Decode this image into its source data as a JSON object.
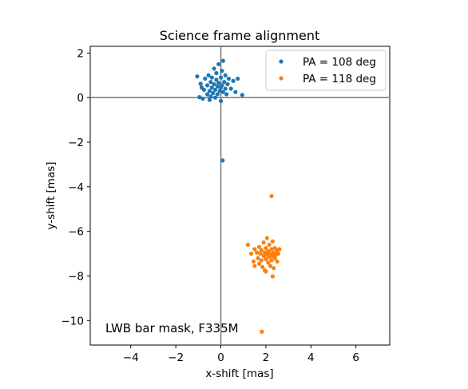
{
  "chart_data": {
    "type": "scatter",
    "title": "Science frame alignment",
    "xlabel": "x-shift [mas]",
    "ylabel": "y-shift [mas]",
    "xlim": [
      -5.8,
      7.5
    ],
    "ylim": [
      -11.1,
      2.3
    ],
    "xticks": [
      -4,
      -2,
      0,
      2,
      4,
      6
    ],
    "yticks": [
      2,
      0,
      -2,
      -4,
      -6,
      -8,
      -10
    ],
    "reference_lines": {
      "x": 0,
      "y": 0,
      "color": "#808080"
    },
    "grid": false,
    "legend_position": "top-right",
    "annotation": "LWB bar mask, F335M",
    "series": [
      {
        "name": "PA = 108 deg",
        "color": "#1f77b4",
        "points": [
          [
            -1.05,
            0.95
          ],
          [
            -0.9,
            0.62
          ],
          [
            -0.95,
            0.02
          ],
          [
            -0.8,
            -0.05
          ],
          [
            -0.85,
            0.45
          ],
          [
            -0.7,
            0.85
          ],
          [
            -0.75,
            0.35
          ],
          [
            -0.6,
            0.15
          ],
          [
            -0.6,
            0.55
          ],
          [
            -0.55,
            1.0
          ],
          [
            -0.5,
            0.3
          ],
          [
            -0.5,
            -0.1
          ],
          [
            -0.45,
            0.7
          ],
          [
            -0.4,
            0.45
          ],
          [
            -0.4,
            0.9
          ],
          [
            -0.35,
            0.2
          ],
          [
            -0.3,
            1.3
          ],
          [
            -0.3,
            0.6
          ],
          [
            -0.25,
            0.0
          ],
          [
            -0.25,
            0.35
          ],
          [
            -0.2,
            0.8
          ],
          [
            -0.2,
            1.1
          ],
          [
            -0.15,
            0.5
          ],
          [
            -0.15,
            0.15
          ],
          [
            -0.1,
            0.65
          ],
          [
            -0.1,
            1.5
          ],
          [
            -0.05,
            0.3
          ],
          [
            0.0,
            0.9
          ],
          [
            0.0,
            -0.15
          ],
          [
            0.05,
            0.55
          ],
          [
            0.05,
            1.2
          ],
          [
            0.1,
            0.25
          ],
          [
            0.1,
            1.65
          ],
          [
            0.15,
            0.7
          ],
          [
            0.2,
            0.4
          ],
          [
            0.2,
            1.0
          ],
          [
            0.25,
            0.15
          ],
          [
            0.3,
            0.6
          ],
          [
            0.35,
            0.85
          ],
          [
            0.45,
            0.4
          ],
          [
            0.55,
            0.75
          ],
          [
            0.65,
            0.25
          ],
          [
            0.75,
            0.85
          ],
          [
            0.95,
            0.12
          ],
          [
            -0.45,
            0.05
          ],
          [
            0.0,
            0.45
          ],
          [
            0.08,
            -2.82
          ]
        ]
      },
      {
        "name": "PA = 118 deg",
        "color": "#ff7f0e",
        "points": [
          [
            2.25,
            -4.42
          ],
          [
            1.2,
            -6.6
          ],
          [
            1.35,
            -7.0
          ],
          [
            1.45,
            -7.35
          ],
          [
            1.5,
            -6.8
          ],
          [
            1.5,
            -7.55
          ],
          [
            1.6,
            -6.95
          ],
          [
            1.65,
            -7.2
          ],
          [
            1.7,
            -6.7
          ],
          [
            1.7,
            -7.45
          ],
          [
            1.75,
            -7.0
          ],
          [
            1.8,
            -6.85
          ],
          [
            1.8,
            -7.3
          ],
          [
            1.85,
            -7.6
          ],
          [
            1.9,
            -6.5
          ],
          [
            1.9,
            -7.1
          ],
          [
            1.95,
            -6.95
          ],
          [
            1.95,
            -7.75
          ],
          [
            2.0,
            -6.75
          ],
          [
            2.0,
            -7.25
          ],
          [
            2.05,
            -7.05
          ],
          [
            2.05,
            -6.3
          ],
          [
            2.1,
            -7.4
          ],
          [
            2.1,
            -6.9
          ],
          [
            2.15,
            -7.15
          ],
          [
            2.15,
            -6.6
          ],
          [
            2.2,
            -7.0
          ],
          [
            2.2,
            -7.55
          ],
          [
            2.25,
            -6.8
          ],
          [
            2.25,
            -7.3
          ],
          [
            2.3,
            -6.45
          ],
          [
            2.3,
            -7.1
          ],
          [
            2.35,
            -6.95
          ],
          [
            2.35,
            -7.65
          ],
          [
            2.4,
            -7.2
          ],
          [
            2.4,
            -6.75
          ],
          [
            2.45,
            -7.05
          ],
          [
            2.5,
            -6.85
          ],
          [
            2.5,
            -7.35
          ],
          [
            2.55,
            -7.0
          ],
          [
            2.6,
            -6.8
          ],
          [
            2.3,
            -8.02
          ],
          [
            2.0,
            -7.8
          ],
          [
            1.82,
            -10.5
          ]
        ]
      }
    ]
  }
}
